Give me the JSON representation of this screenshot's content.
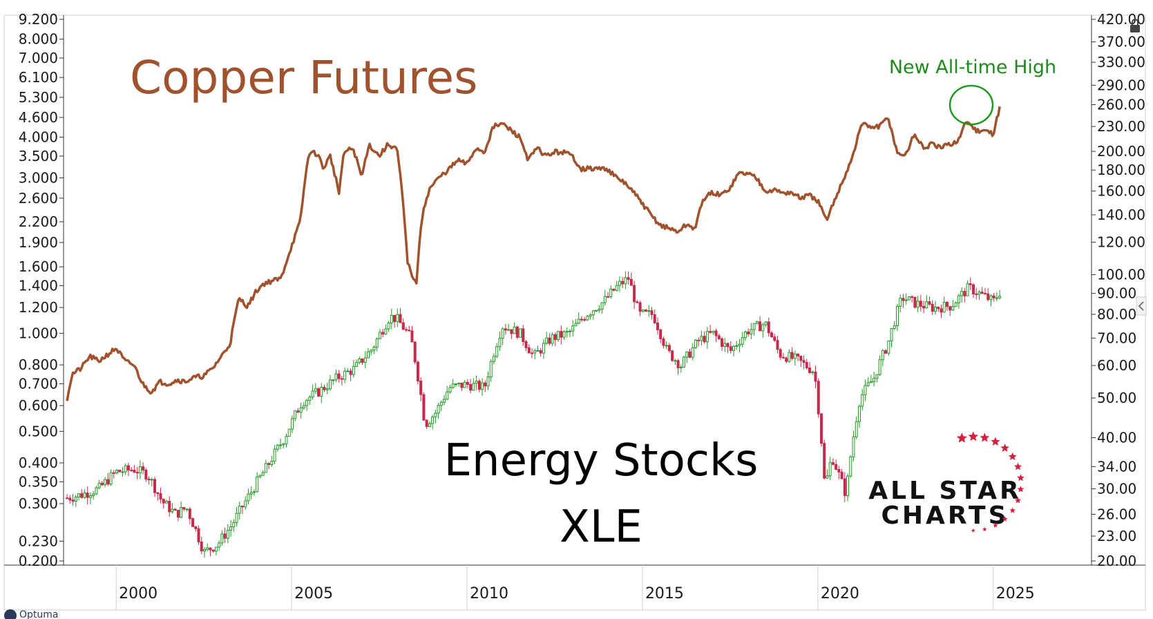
{
  "chart_data": {
    "type": "line",
    "title": "Copper Futures",
    "overlay_title": [
      "Energy Stocks",
      "XLE"
    ],
    "annotation": "New All-time High",
    "x_axis": {
      "ticks": [
        "2000",
        "2005",
        "2010",
        "2015",
        "2020",
        "2025"
      ],
      "range": [
        1998.5,
        2027.8
      ]
    },
    "left_axis": {
      "scale": "log",
      "range": [
        0.2,
        9.2
      ],
      "ticks": [
        "9.200",
        "8.000",
        "7.000",
        "6.100",
        "5.300",
        "4.600",
        "4.000",
        "3.500",
        "3.000",
        "2.600",
        "2.200",
        "1.900",
        "1.600",
        "1.400",
        "1.200",
        "1.000",
        "0.800",
        "0.700",
        "0.600",
        "0.500",
        "0.400",
        "0.350",
        "0.300",
        "0.230",
        "0.200"
      ]
    },
    "right_axis": {
      "scale": "log",
      "range": [
        20,
        420
      ],
      "ticks": [
        "420.00",
        "370.00",
        "330.00",
        "290.00",
        "260.00",
        "230.00",
        "200.00",
        "180.00",
        "160.00",
        "140.00",
        "120.00",
        "100.00",
        "90.00",
        "80.00",
        "70.00",
        "60.00",
        "50.00",
        "40.00",
        "34.00",
        "30.00",
        "26.00",
        "23.00",
        "20.00"
      ]
    },
    "series": [
      {
        "name": "Copper Futures",
        "kind": "line",
        "axis": "left",
        "color": "#a0522d",
        "x": [
          1998.6,
          1998.75,
          1999.0,
          1999.25,
          1999.5,
          1999.75,
          2000.0,
          2000.25,
          2000.5,
          2000.75,
          2001.0,
          2001.25,
          2001.5,
          2001.75,
          2001.95,
          2002.2,
          2002.5,
          2002.75,
          2003.0,
          2003.25,
          2003.5,
          2003.75,
          2004.0,
          2004.2,
          2004.45,
          2004.7,
          2005.0,
          2005.25,
          2005.5,
          2005.75,
          2005.9,
          2006.1,
          2006.35,
          2006.5,
          2006.75,
          2007.0,
          2007.2,
          2007.5,
          2007.75,
          2008.0,
          2008.3,
          2008.55,
          2008.75,
          2008.95,
          2009.2,
          2009.5,
          2009.75,
          2010.0,
          2010.25,
          2010.5,
          2010.75,
          2011.0,
          2011.25,
          2011.5,
          2011.75,
          2012.0,
          2012.25,
          2012.5,
          2012.75,
          2013.0,
          2013.25,
          2013.5,
          2013.75,
          2014.0,
          2014.25,
          2014.5,
          2014.75,
          2015.0,
          2015.25,
          2015.5,
          2015.75,
          2016.0,
          2016.25,
          2016.5,
          2016.75,
          2017.0,
          2017.25,
          2017.5,
          2017.75,
          2018.0,
          2018.25,
          2018.5,
          2018.75,
          2019.0,
          2019.25,
          2019.5,
          2019.75,
          2020.0,
          2020.25,
          2020.5,
          2020.75,
          2021.0,
          2021.25,
          2021.5,
          2021.75,
          2022.0,
          2022.25,
          2022.5,
          2022.75,
          2023.0,
          2023.25,
          2023.5,
          2023.75,
          2024.0,
          2024.25,
          2024.5,
          2024.75,
          2025.0,
          2025.2
        ],
        "y": [
          0.63,
          0.75,
          0.78,
          0.85,
          0.82,
          0.86,
          0.9,
          0.82,
          0.8,
          0.7,
          0.66,
          0.71,
          0.7,
          0.72,
          0.71,
          0.73,
          0.74,
          0.78,
          0.85,
          0.93,
          1.28,
          1.21,
          1.35,
          1.42,
          1.45,
          1.47,
          1.85,
          2.2,
          3.6,
          3.55,
          3.2,
          3.5,
          2.7,
          3.6,
          3.7,
          3.0,
          3.8,
          3.5,
          3.8,
          3.7,
          1.65,
          1.4,
          2.4,
          2.8,
          3.0,
          3.2,
          3.4,
          3.3,
          3.7,
          3.6,
          4.3,
          4.4,
          4.2,
          4.0,
          3.4,
          3.7,
          3.5,
          3.6,
          3.6,
          3.5,
          3.2,
          3.2,
          3.2,
          3.2,
          3.0,
          2.9,
          2.7,
          2.5,
          2.3,
          2.15,
          2.1,
          2.05,
          2.15,
          2.1,
          2.6,
          2.7,
          2.65,
          2.8,
          3.1,
          3.1,
          3.0,
          2.75,
          2.75,
          2.7,
          2.7,
          2.6,
          2.65,
          2.55,
          2.2,
          2.6,
          3.0,
          3.5,
          4.4,
          4.3,
          4.3,
          4.6,
          3.6,
          3.5,
          4.1,
          3.7,
          3.8,
          3.7,
          3.8,
          3.9,
          4.5,
          4.2,
          4.2,
          4.1,
          5.0
        ]
      },
      {
        "name": "Energy Stocks XLE",
        "kind": "candlestick",
        "axis": "right",
        "up_color": "#1e9a1e",
        "down_color": "#c8294a",
        "x": [
          1998.6,
          1999.0,
          1999.5,
          2000.0,
          2000.5,
          2000.9,
          2001.3,
          2001.7,
          2002.0,
          2002.5,
          2002.9,
          2003.3,
          2003.8,
          2004.3,
          2004.8,
          2005.3,
          2005.8,
          2006.3,
          2006.8,
          2007.3,
          2007.8,
          2008.0,
          2008.4,
          2008.8,
          2009.1,
          2009.5,
          2010.0,
          2010.5,
          2011.0,
          2011.5,
          2011.9,
          2012.4,
          2012.9,
          2013.4,
          2013.9,
          2014.3,
          2014.6,
          2014.9,
          2015.3,
          2015.7,
          2016.1,
          2016.6,
          2017.0,
          2017.5,
          2018.0,
          2018.5,
          2018.9,
          2019.4,
          2019.9,
          2020.2,
          2020.4,
          2020.8,
          2021.2,
          2021.6,
          2022.0,
          2022.4,
          2022.8,
          2023.3,
          2023.8,
          2024.3,
          2024.7,
          2025.0,
          2025.2
        ],
        "y": [
          28.5,
          29.0,
          30.0,
          33.0,
          33.5,
          32.5,
          28.0,
          26.0,
          27.0,
          21.0,
          22.0,
          24.5,
          29.0,
          34.0,
          40.0,
          49.0,
          52.0,
          56.0,
          59.0,
          66.0,
          79.0,
          78.0,
          70.0,
          43.0,
          46.0,
          53.0,
          54.0,
          53.0,
          75.0,
          72.0,
          63.0,
          70.0,
          72.0,
          80.0,
          86.0,
          94.0,
          98.0,
          80.0,
          80.0,
          65.0,
          60.0,
          69.0,
          72.0,
          65.0,
          73.0,
          76.0,
          64.0,
          62.0,
          58.0,
          30.0,
          36.0,
          29.0,
          50.0,
          56.0,
          68.0,
          88.0,
          85.0,
          83.0,
          84.0,
          93.0,
          89.0,
          86.0,
          91.0
        ]
      }
    ]
  },
  "logo": {
    "line1": "ALL STAR",
    "line2": "CHARTS"
  },
  "brand": {
    "label": "Optuma"
  }
}
